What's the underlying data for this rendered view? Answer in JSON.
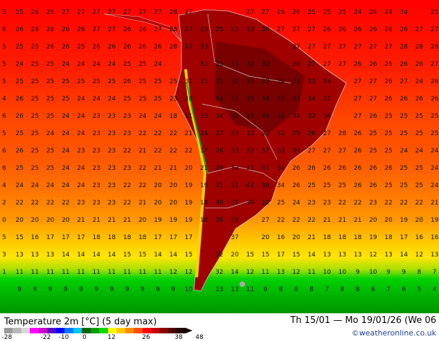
{
  "map": {
    "title": "Temperature 2m [°C] (5 day max)",
    "date_range": "Th 15/01 — Mo 19/01/26 (We 06",
    "credit": "©weatheronline.co.uk",
    "colorbar_ticks": [
      "-28",
      "-22",
      "-10",
      "0",
      "12",
      "26",
      "38",
      "48"
    ],
    "colorbar_colors": [
      "#9a9a9a",
      "#b8b8b8",
      "#d8d8d8",
      "#ff00ff",
      "#c800c8",
      "#5a00c8",
      "#0000ff",
      "#0078ff",
      "#00c8ff",
      "#006400",
      "#00a000",
      "#00dc00",
      "#ffff00",
      "#ffc800",
      "#ff8c00",
      "#ff5000",
      "#ff0000",
      "#c80000",
      "#8c0000",
      "#500000",
      "#1a0000"
    ],
    "grid": [
      [
        "5",
        "25",
        "26",
        "26",
        "27",
        "27",
        "27",
        "27",
        "27",
        "27",
        "27",
        "28",
        "27",
        "",
        "",
        "",
        "27",
        "27",
        "26",
        "26",
        "25",
        "25",
        "25",
        "24",
        "24",
        "24",
        "24",
        "",
        "25"
      ],
      [
        "6",
        "26",
        "26",
        "26",
        "26",
        "26",
        "27",
        "27",
        "26",
        "26",
        "27",
        "28",
        "27",
        "23",
        "25",
        "23",
        "33",
        "30",
        "27",
        "27",
        "27",
        "26",
        "26",
        "26",
        "26",
        "26",
        "26",
        "27",
        "27"
      ],
      [
        "5",
        "25",
        "25",
        "26",
        "26",
        "25",
        "26",
        "26",
        "26",
        "26",
        "26",
        "28",
        "14",
        "33",
        "",
        "",
        "",
        "",
        "",
        "27",
        "27",
        "27",
        "27",
        "27",
        "27",
        "27",
        "28",
        "28",
        "28"
      ],
      [
        "5",
        "24",
        "25",
        "25",
        "24",
        "24",
        "24",
        "24",
        "25",
        "25",
        "24",
        "",
        "",
        "31",
        "32",
        "31",
        "32",
        "32",
        "",
        "28",
        "27",
        "27",
        "27",
        "26",
        "26",
        "26",
        "26",
        "26",
        "27"
      ],
      [
        "5",
        "25",
        "25",
        "25",
        "25",
        "25",
        "25",
        "25",
        "26",
        "25",
        "25",
        "25",
        "32",
        "31",
        "31",
        "32",
        "33",
        "32",
        "34",
        "31",
        "33",
        "34",
        "",
        "27",
        "27",
        "26",
        "27",
        "24",
        "26"
      ],
      [
        "4",
        "26",
        "25",
        "25",
        "25",
        "24",
        "24",
        "24",
        "25",
        "25",
        "25",
        "23",
        "28",
        "",
        "34",
        "31",
        "35",
        "34",
        "35",
        "33",
        "34",
        "37",
        "",
        "27",
        "27",
        "26",
        "26",
        "26",
        "26"
      ],
      [
        "6",
        "26",
        "25",
        "25",
        "24",
        "24",
        "23",
        "23",
        "23",
        "24",
        "24",
        "18",
        "11",
        "33",
        "34",
        "32",
        "31",
        "34",
        "32",
        "34",
        "32",
        "34",
        "",
        "27",
        "26",
        "25",
        "25",
        "25",
        "25"
      ],
      [
        "5",
        "25",
        "25",
        "24",
        "24",
        "24",
        "23",
        "23",
        "23",
        "22",
        "22",
        "22",
        "21",
        "24",
        "27",
        "33",
        "31",
        "33",
        "32",
        "29",
        "26",
        "27",
        "28",
        "26",
        "25",
        "25",
        "25",
        "25",
        "25"
      ],
      [
        "6",
        "26",
        "25",
        "25",
        "24",
        "23",
        "23",
        "23",
        "22",
        "21",
        "22",
        "22",
        "22",
        "17",
        "26",
        "33",
        "33",
        "37",
        "33",
        "29",
        "27",
        "27",
        "27",
        "26",
        "25",
        "25",
        "24",
        "24",
        "24"
      ],
      [
        "6",
        "25",
        "25",
        "25",
        "24",
        "24",
        "23",
        "23",
        "23",
        "22",
        "21",
        "21",
        "20",
        "21",
        "20",
        "32",
        "31",
        "31",
        "31",
        "26",
        "26",
        "26",
        "26",
        "26",
        "26",
        "26",
        "25",
        "25",
        "24"
      ],
      [
        "4",
        "24",
        "24",
        "24",
        "24",
        "24",
        "23",
        "23",
        "22",
        "22",
        "20",
        "20",
        "19",
        "19",
        "21",
        "31",
        "41",
        "36",
        "34",
        "26",
        "25",
        "25",
        "25",
        "26",
        "26",
        "25",
        "25",
        "25",
        "24"
      ],
      [
        "2",
        "22",
        "22",
        "22",
        "22",
        "23",
        "23",
        "23",
        "22",
        "21",
        "20",
        "20",
        "19",
        "18",
        "36",
        "38",
        "39",
        "32",
        "25",
        "24",
        "23",
        "23",
        "22",
        "22",
        "23",
        "22",
        "22",
        "22",
        "21"
      ],
      [
        "0",
        "20",
        "20",
        "20",
        "20",
        "21",
        "21",
        "21",
        "21",
        "20",
        "19",
        "19",
        "19",
        "18",
        "36",
        "38",
        "",
        "27",
        "22",
        "22",
        "22",
        "21",
        "21",
        "21",
        "20",
        "20",
        "19",
        "20",
        "19"
      ],
      [
        "5",
        "15",
        "16",
        "17",
        "17",
        "17",
        "18",
        "18",
        "18",
        "18",
        "17",
        "17",
        "17",
        "",
        "",
        "37",
        "",
        "20",
        "16",
        "20",
        "21",
        "18",
        "18",
        "18",
        "19",
        "18",
        "17",
        "16",
        "16"
      ],
      [
        "3",
        "13",
        "13",
        "13",
        "14",
        "14",
        "14",
        "14",
        "15",
        "15",
        "14",
        "14",
        "15",
        "",
        "32",
        "20",
        "15",
        "15",
        "17",
        "15",
        "14",
        "13",
        "13",
        "13",
        "12",
        "13",
        "14",
        "12",
        "13"
      ],
      [
        "1",
        "11",
        "11",
        "11",
        "11",
        "11",
        "11",
        "11",
        "11",
        "11",
        "11",
        "12",
        "12",
        "",
        "32",
        "14",
        "12",
        "11",
        "13",
        "12",
        "11",
        "10",
        "10",
        "9",
        "10",
        "9",
        "9",
        "8",
        "7"
      ],
      [
        "",
        "9",
        "8",
        "9",
        "9",
        "9",
        "9",
        "9",
        "9",
        "9",
        "9",
        "9",
        "10",
        "",
        "13",
        "13",
        "11",
        "9",
        "8",
        "8",
        "8",
        "7",
        "8",
        "8",
        "6",
        "7",
        "6",
        "5",
        "4"
      ]
    ]
  }
}
